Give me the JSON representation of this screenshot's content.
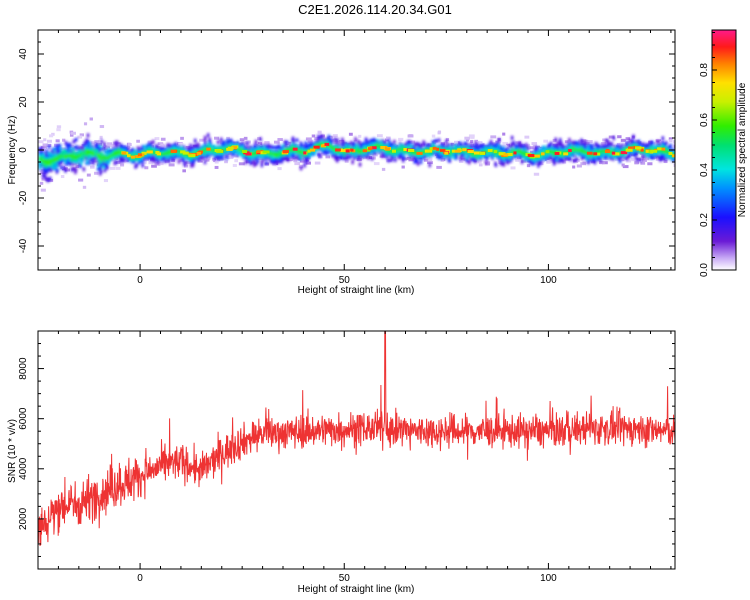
{
  "title": "C2E1.2026.114.20.34.G01",
  "chart_data": [
    {
      "type": "heatmap",
      "name": "spectrogram",
      "xlabel": "Height of straight line (km)",
      "ylabel": "Frequency (Hz)",
      "xlim": [
        -25,
        131
      ],
      "ylim": [
        -50,
        50
      ],
      "xticks": [
        0,
        50,
        100
      ],
      "yticks": [
        -40,
        -20,
        0,
        20,
        40
      ],
      "colorbar": {
        "label": "Normalized spectral amplitude",
        "range": [
          0,
          0.96
        ],
        "ticks": [
          0.0,
          0.2,
          0.4,
          0.6,
          0.8
        ]
      },
      "ridge": {
        "description_values_hz": [
          [
            -25,
            -4
          ],
          [
            -20,
            -3
          ],
          [
            -15,
            -2
          ],
          [
            -10,
            -3
          ],
          [
            -5,
            -1
          ],
          [
            0,
            -2
          ],
          [
            10,
            -1
          ],
          [
            20,
            0
          ],
          [
            30,
            -1
          ],
          [
            40,
            -1
          ],
          [
            46,
            3
          ],
          [
            50,
            -1
          ],
          [
            60,
            1
          ],
          [
            70,
            -1
          ],
          [
            80,
            0
          ],
          [
            90,
            -2
          ],
          [
            100,
            -1
          ],
          [
            110,
            -1
          ],
          [
            120,
            0
          ],
          [
            131,
            -1
          ]
        ]
      }
    },
    {
      "type": "line",
      "name": "snr",
      "xlabel": "Height of straight line (km)",
      "ylabel": "SNR (10 * v/v)",
      "xlim": [
        -25,
        131
      ],
      "ylim": [
        0,
        9500
      ],
      "xticks": [
        0,
        50,
        100
      ],
      "yticks": [
        2000,
        4000,
        6000,
        8000
      ],
      "color": "#ee3333",
      "trend": [
        [
          -25,
          1500
        ],
        [
          -20,
          2500
        ],
        [
          -15,
          2600
        ],
        [
          -10,
          3000
        ],
        [
          -5,
          3400
        ],
        [
          0,
          3700
        ],
        [
          5,
          4100
        ],
        [
          10,
          4300
        ],
        [
          15,
          3900
        ],
        [
          20,
          4600
        ],
        [
          25,
          5100
        ],
        [
          30,
          5400
        ],
        [
          40,
          5500
        ],
        [
          50,
          5600
        ],
        [
          60,
          5600
        ],
        [
          70,
          5500
        ],
        [
          80,
          5500
        ],
        [
          90,
          5500
        ],
        [
          100,
          5500
        ],
        [
          110,
          5600
        ],
        [
          120,
          5600
        ],
        [
          131,
          5500
        ]
      ]
    }
  ]
}
